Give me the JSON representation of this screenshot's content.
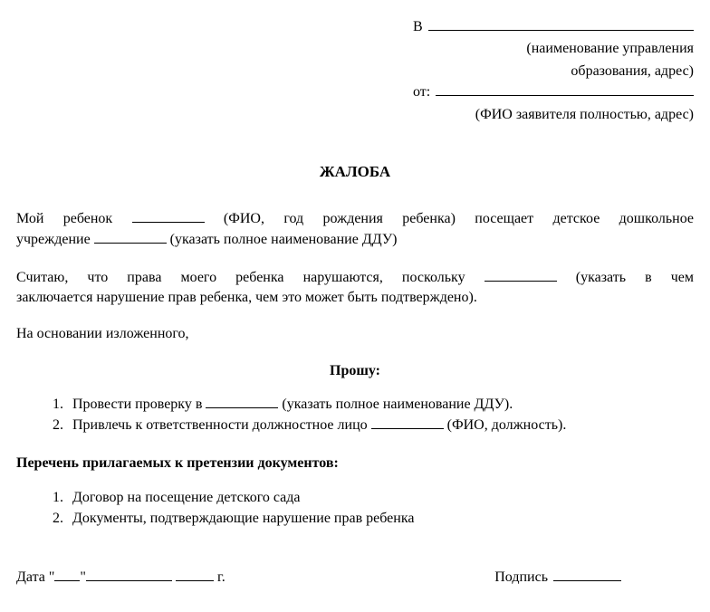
{
  "header": {
    "to_prefix": "В",
    "to_hint_line1": "(наименование управления",
    "to_hint_line2": "образования, адрес)",
    "from_prefix": "от:",
    "from_hint": "(ФИО заявителя полностью, адрес)"
  },
  "title": "ЖАЛОБА",
  "para1": {
    "part1": "Мой ребенок ",
    "hint1": " (ФИО, год рождения ребенка) посещает детское дошкольное",
    "part2": "учреждение ",
    "hint2": " (указать полное наименование ДДУ)"
  },
  "para2": {
    "part1": "Считаю, что права моего ребенка нарушаются, поскольку ",
    "hint1": " (указать в чем",
    "part2": "заключается нарушение прав ребенка, чем это может быть подтверждено)."
  },
  "para3": "На основании изложенного,",
  "request_title": "Прошу:",
  "requests": [
    {
      "before": "Провести проверку в ",
      "after": " (указать полное наименование ДДУ)."
    },
    {
      "before": "Привлечь к ответственности должностное лицо ",
      "after": " (ФИО, должность)."
    }
  ],
  "attachments_title": "Перечень прилагаемых к претензии документов",
  "attachments": [
    "Договор на посещение детского сада",
    "Документы, подтверждающие нарушение прав ребенка"
  ],
  "footer": {
    "date_label": "Дата",
    "year_suffix": "г.",
    "signature_label": "Подпись"
  },
  "styling": {
    "font_family": "Times New Roman",
    "font_size_pt": 12,
    "text_color": "#000000",
    "background_color": "#ffffff"
  }
}
